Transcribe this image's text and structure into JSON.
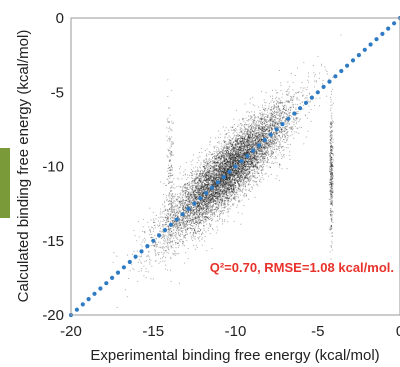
{
  "chart_data": {
    "type": "scatter",
    "xlabel": "Experimental binding free energy (kcal/mol)",
    "ylabel": "Calculated binding free energy (kcal/mol)",
    "xlim": [
      -20,
      0
    ],
    "ylim": [
      -20,
      0
    ],
    "x_ticks": [
      -20,
      -15,
      -10,
      -5,
      0
    ],
    "y_ticks": [
      0,
      -5,
      -10,
      -15,
      -20
    ],
    "x_tick_labels": [
      "-20",
      "-15",
      "-10",
      "-5",
      "0"
    ],
    "y_tick_labels": [
      "0",
      "-5",
      "-10",
      "-15",
      "-20"
    ],
    "identity_line": {
      "from": [
        -20,
        -20
      ],
      "to": [
        0,
        0
      ],
      "color": "#2e7bc4",
      "style": "dotted"
    },
    "point_cloud": {
      "center": [
        -10.5,
        -10.5
      ],
      "x_range": [
        -15,
        -2
      ],
      "y_range": [
        -16,
        -4
      ],
      "point_color": "#111111",
      "vertical_streak_x": -4.2
    },
    "annotation": {
      "text": "Q²=0.70, RMSE=1.08 kcal/mol.",
      "color": "#e8322b"
    },
    "grid": false
  }
}
